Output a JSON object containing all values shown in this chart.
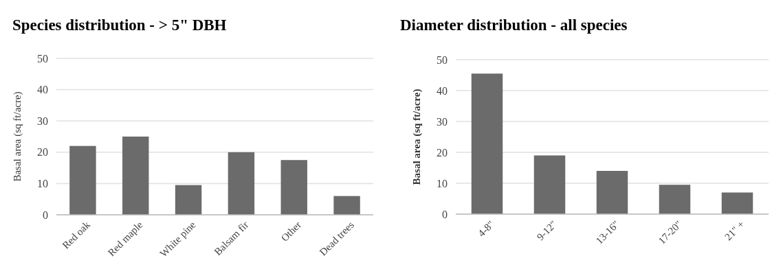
{
  "chart_data": [
    {
      "type": "bar",
      "title": "Species distribution - > 5\" DBH",
      "ylabel": "Basal area (sq ft/acre)",
      "categories": [
        "Red oak",
        "Red maple",
        "White pine",
        "Balsam fir",
        "Other",
        "Dead trees"
      ],
      "values": [
        22,
        25,
        9.5,
        20,
        17.5,
        6
      ],
      "color": "#6b6b6b",
      "ylim": [
        0,
        50
      ],
      "yticks": [
        0,
        10,
        20,
        30,
        40,
        50
      ],
      "grid": "y"
    },
    {
      "type": "bar",
      "title": "Diameter distribution - all species",
      "ylabel": "Basal area (sq ft/acre)",
      "categories": [
        "4-8\"",
        "9-12\"",
        "13-16\"",
        "17-20\"",
        "21\" +"
      ],
      "values": [
        45.5,
        19,
        14,
        9.5,
        7
      ],
      "color": "#6b6b6b",
      "ylim": [
        0,
        50
      ],
      "yticks": [
        0,
        10,
        20,
        30,
        40,
        50
      ],
      "grid": "y"
    }
  ]
}
